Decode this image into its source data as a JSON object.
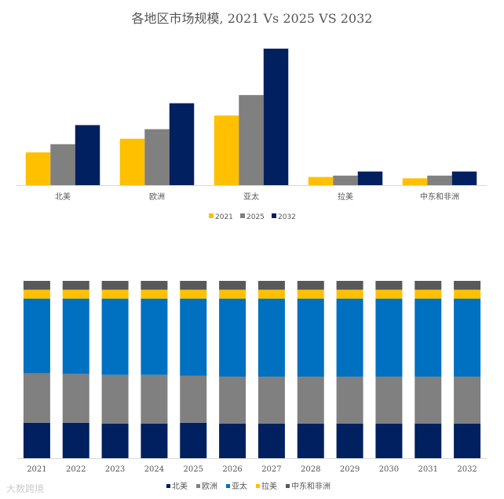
{
  "chart_data": [
    {
      "type": "bar",
      "title": "各地区市场规模, 2021 Vs 2025 VS 2032",
      "categories": [
        "北美",
        "欧洲",
        "亚太",
        "拉美",
        "中东和非洲"
      ],
      "series": [
        {
          "name": "2021",
          "color": "#FFC000",
          "values": [
            24,
            34,
            51,
            6,
            5
          ]
        },
        {
          "name": "2025",
          "color": "#808080",
          "values": [
            30,
            41,
            66,
            7,
            7
          ]
        },
        {
          "name": "2032",
          "color": "#002060",
          "values": [
            44,
            60,
            100,
            10,
            10
          ]
        }
      ],
      "ylim": [
        0,
        100
      ],
      "grid": false,
      "legend": "bottom"
    },
    {
      "type": "bar",
      "stacked": "percent",
      "categories": [
        "2021",
        "2022",
        "2023",
        "2024",
        "2025",
        "2026",
        "2027",
        "2028",
        "2029",
        "2030",
        "2031",
        "2032"
      ],
      "series": [
        {
          "name": "北美",
          "color": "#002060",
          "values": [
            20,
            20,
            19.5,
            19.5,
            20,
            19.5,
            19.5,
            19.5,
            19.5,
            19.5,
            19.5,
            19.5
          ]
        },
        {
          "name": "欧洲",
          "color": "#808080",
          "values": [
            28,
            27.5,
            27.5,
            27.5,
            26.5,
            26.5,
            26.5,
            26.5,
            26.5,
            26.5,
            26.5,
            26.5
          ]
        },
        {
          "name": "亚太",
          "color": "#0070C0",
          "values": [
            42,
            42.5,
            43,
            43,
            43.5,
            44,
            44,
            44,
            44,
            44,
            44,
            44
          ]
        },
        {
          "name": "拉美",
          "color": "#FFC000",
          "values": [
            5,
            5,
            5,
            5,
            5,
            5,
            5,
            5,
            5,
            5,
            5,
            5
          ]
        },
        {
          "name": "中东和非洲",
          "color": "#595959",
          "values": [
            5,
            5,
            5,
            5,
            5,
            5,
            5,
            5,
            5,
            5,
            5,
            5
          ]
        }
      ],
      "ylim": [
        0,
        100
      ],
      "grid": false,
      "legend": "bottom"
    }
  ],
  "watermark": "大数跨境"
}
